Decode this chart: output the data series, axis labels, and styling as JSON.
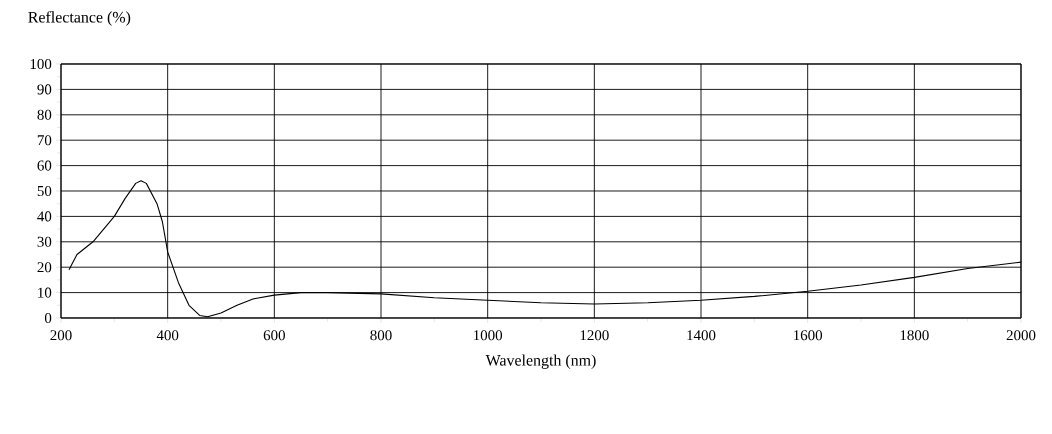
{
  "chart_data": {
    "type": "line",
    "xlabel": "Wavelength (nm)",
    "ylabel": "Reflectance (%)",
    "x": [
      215,
      230,
      260,
      300,
      320,
      340,
      350,
      360,
      380,
      390,
      400,
      420,
      440,
      460,
      475,
      500,
      530,
      560,
      600,
      650,
      700,
      800,
      900,
      1000,
      1100,
      1200,
      1300,
      1400,
      1500,
      1600,
      1700,
      1800,
      1900,
      2000
    ],
    "series": [
      {
        "color": "#000000",
        "values": [
          19,
          25,
          30,
          40,
          47,
          53,
          54,
          53,
          45,
          38,
          26,
          14,
          5,
          1,
          0.5,
          2,
          5,
          7.5,
          9,
          10,
          10,
          9.5,
          8,
          7,
          6,
          5.5,
          6,
          7,
          8.5,
          10.5,
          13,
          16,
          19.5,
          22
        ]
      }
    ],
    "xlim": [
      200,
      2000
    ],
    "ylim": [
      0,
      100
    ],
    "xticks": [
      200,
      400,
      600,
      800,
      1000,
      1200,
      1400,
      1600,
      1800,
      2000
    ],
    "yticks": [
      0,
      10,
      20,
      30,
      40,
      50,
      60,
      70,
      80,
      90,
      100
    ],
    "grid": true,
    "marker": "none",
    "line_style": "solid"
  }
}
